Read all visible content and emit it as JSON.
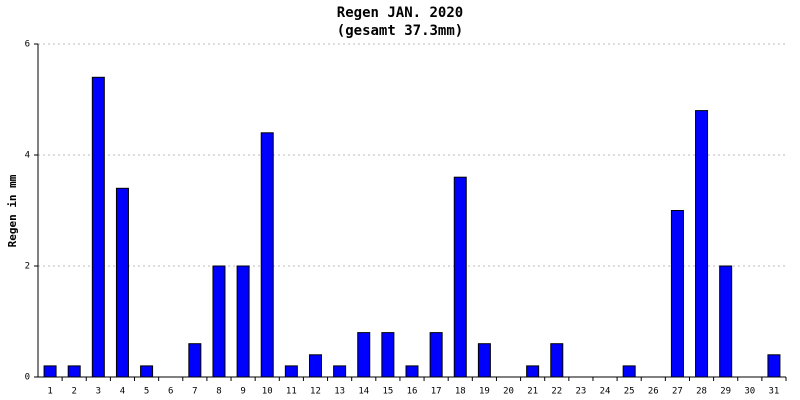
{
  "chart_data": {
    "type": "bar",
    "title": "Regen JAN. 2020",
    "subtitle": "(gesamt 37.3mm)",
    "y_label": "Regen in mm",
    "categories": [
      "1",
      "2",
      "3",
      "4",
      "5",
      "6",
      "7",
      "8",
      "9",
      "10",
      "11",
      "12",
      "13",
      "14",
      "15",
      "16",
      "17",
      "18",
      "19",
      "20",
      "21",
      "22",
      "23",
      "24",
      "25",
      "26",
      "27",
      "28",
      "29",
      "30",
      "31"
    ],
    "values": [
      0.2,
      0.2,
      5.4,
      3.4,
      0.2,
      0,
      0.6,
      2,
      2,
      4.4,
      0.2,
      0.4,
      0.2,
      0.8,
      0.8,
      0.2,
      0.8,
      3.6,
      0.6,
      0,
      0.2,
      0.6,
      0,
      0,
      0.2,
      0,
      3,
      4.8,
      2,
      0,
      0.4
    ],
    "color": "#0000ff",
    "ylim": [
      0,
      6
    ],
    "yticks": [
      0,
      2,
      4,
      6
    ],
    "grid": true
  }
}
